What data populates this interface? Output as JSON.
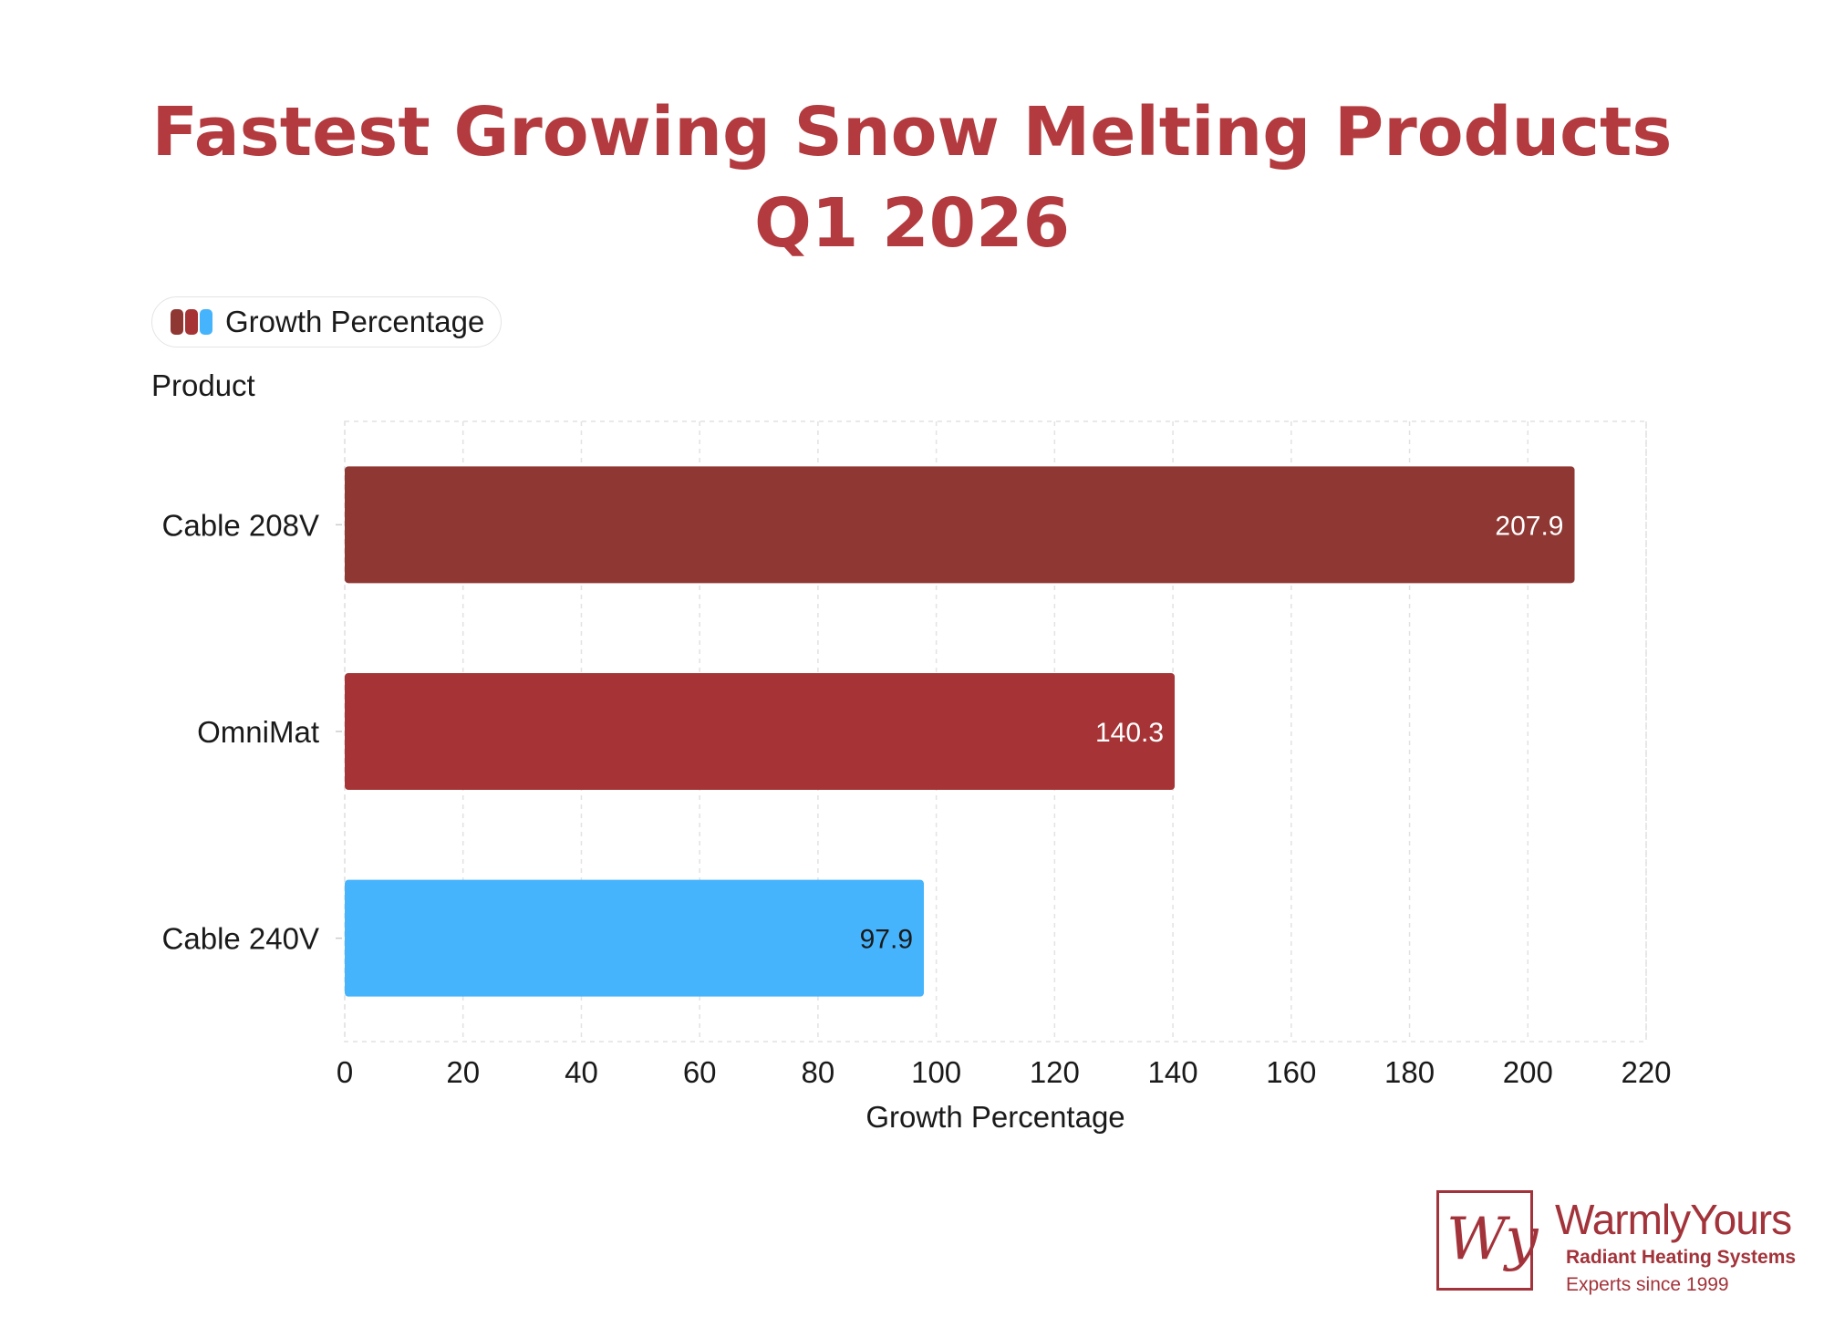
{
  "title": {
    "line1": "Fastest Growing Snow Melting Products",
    "line2": "Q1 2026"
  },
  "legend": {
    "label": "Growth Percentage",
    "swatch_colors": [
      "#8f3733",
      "#a63436",
      "#45b4fc"
    ]
  },
  "chart_data": {
    "type": "bar",
    "orientation": "horizontal",
    "title": "Fastest Growing Snow Melting Products Q1 2026",
    "categories": [
      "Cable 208V",
      "OmniMat",
      "Cable 240V"
    ],
    "series": [
      {
        "name": "Growth Percentage",
        "values": [
          207.9,
          140.3,
          97.9
        ],
        "colors": [
          "#8f3733",
          "#a63436",
          "#45b4fc"
        ],
        "label_colors": [
          "#ffffff",
          "#ffffff",
          "#1a1a1a"
        ]
      }
    ],
    "xlabel": "Growth Percentage",
    "ylabel": "Product",
    "xlim": [
      0,
      220
    ],
    "xticks": [
      "0",
      "20",
      "40",
      "60",
      "80",
      "100",
      "120",
      "140",
      "160",
      "180",
      "200",
      "220"
    ],
    "grid": true,
    "legend_position": "top-left"
  },
  "brand": {
    "mark": "Wy",
    "name": "WarmlyYours",
    "tagline": "Radiant Heating Systems",
    "since": "Experts since 1999"
  }
}
